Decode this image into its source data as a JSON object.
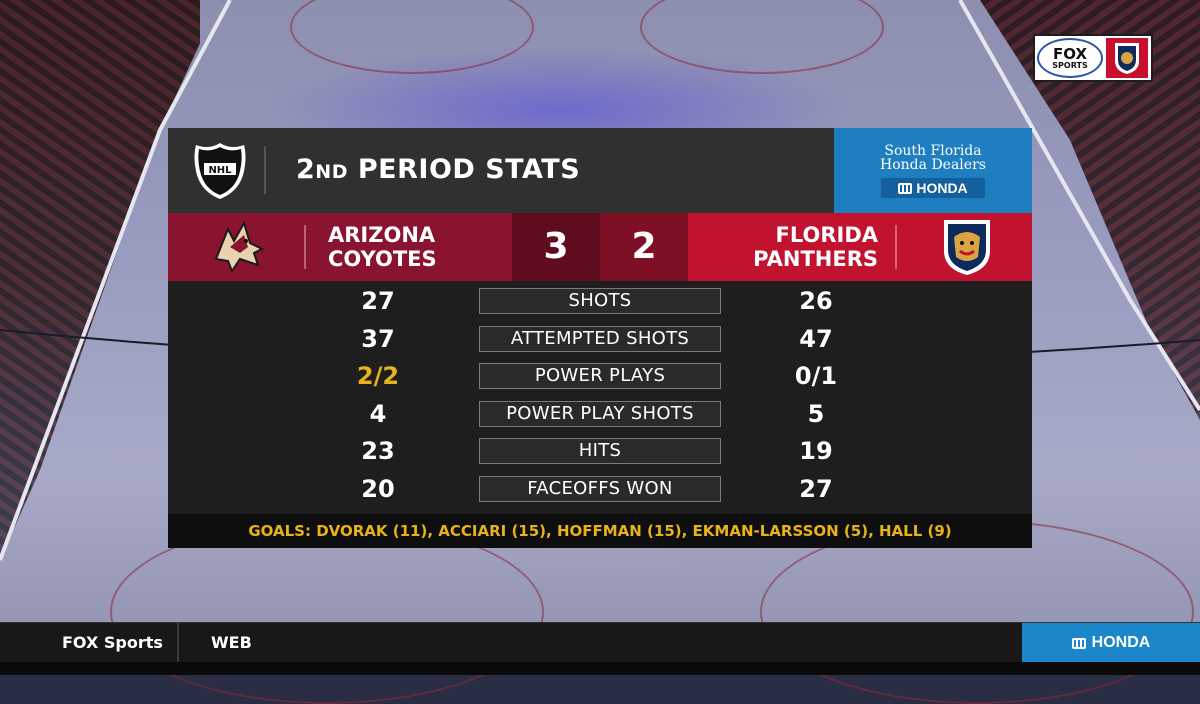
{
  "header": {
    "title_prefix": "2",
    "title_suffix": "ND",
    "title_main": "PERIOD STATS"
  },
  "sponsor": {
    "line1": "South Florida",
    "line2": "Honda Dealers",
    "brand": "HONDA"
  },
  "teams": {
    "away": {
      "line1": "ARIZONA",
      "line2": "COYOTES",
      "score": "3",
      "color": "#8a1430"
    },
    "home": {
      "line1": "FLORIDA",
      "line2": "PANTHERS",
      "score": "2",
      "color": "#c1122f"
    }
  },
  "stats": [
    {
      "label": "SHOTS",
      "away": "27",
      "home": "26"
    },
    {
      "label": "ATTEMPTED SHOTS",
      "away": "37",
      "home": "47"
    },
    {
      "label": "POWER PLAYS",
      "away": "2/2",
      "home": "0/1",
      "away_highlight": true
    },
    {
      "label": "POWER PLAY SHOTS",
      "away": "4",
      "home": "5"
    },
    {
      "label": "HITS",
      "away": "23",
      "home": "19"
    },
    {
      "label": "FACEOFFS WON",
      "away": "20",
      "home": "27"
    }
  ],
  "goals": "GOALS: DVORAK (11), ACCIARI (15), HOFFMAN (15), EKMAN-LARSSON (5), HALL (9)",
  "bug": {
    "network_line1": "FOX",
    "network_line2": "SPORTS"
  },
  "ticker": {
    "network": "FOX Sports",
    "section": "WEB",
    "sponsor": "HONDA"
  },
  "icons": {
    "league": "nhl-shield-icon",
    "away_team": "coyotes-logo-icon",
    "home_team": "panthers-logo-icon"
  }
}
